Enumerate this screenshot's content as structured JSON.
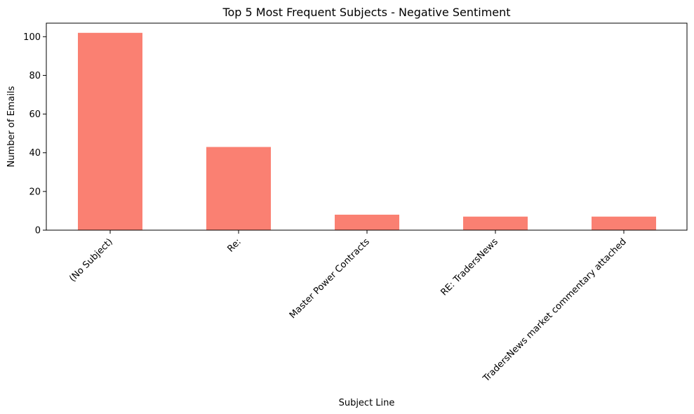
{
  "chart_data": {
    "type": "bar",
    "title": "Top 5 Most Frequent Subjects - Negative Sentiment",
    "xlabel": "Subject Line",
    "ylabel": "Number of Emails",
    "categories": [
      "(No Subject)",
      "Re:",
      "Master Power Contracts",
      "RE: TradersNews",
      "TradersNews market commentary attached"
    ],
    "values": [
      102,
      43,
      8,
      7,
      7
    ],
    "ylim": [
      0,
      107
    ],
    "yticks": [
      0,
      20,
      40,
      60,
      80,
      100
    ],
    "bar_color": "#fa8072",
    "grid": false,
    "legend": "none"
  }
}
